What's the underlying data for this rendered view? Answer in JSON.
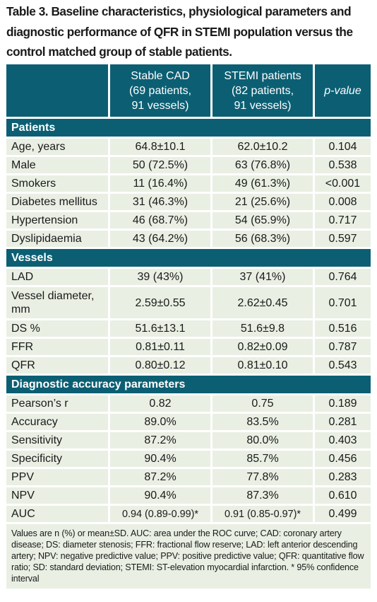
{
  "caption": "Table 3. Baseline characteristics, physiological parameters and diagnostic performance of QFR in STEMI population versus the control matched group of stable patients.",
  "columns": {
    "stable": [
      "Stable CAD",
      "(69 patients,",
      "91 vessels)"
    ],
    "stemi": [
      "STEMI patients",
      "(82 patients,",
      "91 vessels)"
    ],
    "pvalue": "p-value"
  },
  "sections": [
    {
      "title": "Patients",
      "rows": [
        {
          "label": "Age, years",
          "stable": "64.8±10.1",
          "stemi": "62.0±10.2",
          "p": "0.104"
        },
        {
          "label": "Male",
          "stable": "50 (72.5%)",
          "stemi": "63 (76.8%)",
          "p": "0.538"
        },
        {
          "label": "Smokers",
          "stable": "11 (16.4%)",
          "stemi": "49 (61.3%)",
          "p": "<0.001"
        },
        {
          "label": "Diabetes mellitus",
          "stable": "31 (46.3%)",
          "stemi": "21 (25.6%)",
          "p": "0.008"
        },
        {
          "label": "Hypertension",
          "stable": "46 (68.7%)",
          "stemi": "54 (65.9%)",
          "p": "0.717"
        },
        {
          "label": "Dyslipidaemia",
          "stable": "43 (64.2%)",
          "stemi": "56 (68.3%)",
          "p": "0.597"
        }
      ]
    },
    {
      "title": "Vessels",
      "rows": [
        {
          "label": "LAD",
          "stable": "39 (43%)",
          "stemi": "37 (41%)",
          "p": "0.764"
        },
        {
          "label": "Vessel diameter, mm",
          "stable": "2.59±0.55",
          "stemi": "2.62±0.45",
          "p": "0.701"
        },
        {
          "label": "DS %",
          "stable": "51.6±13.1",
          "stemi": "51.6±9.8",
          "p": "0.516"
        },
        {
          "label": "FFR",
          "stable": "0.81±0.11",
          "stemi": "0.82±0.09",
          "p": "0.787"
        },
        {
          "label": "QFR",
          "stable": "0.80±0.12",
          "stemi": "0.81±0.10",
          "p": "0.543"
        }
      ]
    },
    {
      "title": "Diagnostic accuracy parameters",
      "rows": [
        {
          "label": "Pearson’s r",
          "stable": "0.82",
          "stemi": "0.75",
          "p": "0.189"
        },
        {
          "label": "Accuracy",
          "stable": "89.0%",
          "stemi": "83.5%",
          "p": "0.281"
        },
        {
          "label": "Sensitivity",
          "stable": "87.2%",
          "stemi": "80.0%",
          "p": "0.403"
        },
        {
          "label": "Specificity",
          "stable": "90.4%",
          "stemi": "85.7%",
          "p": "0.456"
        },
        {
          "label": "PPV",
          "stable": "87.2%",
          "stemi": "77.8%",
          "p": "0.283"
        },
        {
          "label": "NPV",
          "stable": "90.4%",
          "stemi": "87.3%",
          "p": "0.610"
        },
        {
          "label": "AUC",
          "stable": "0.94 (0.89-0.99)*",
          "stemi": "0.91 (0.85-0.97)*",
          "p": "0.499"
        }
      ]
    }
  ],
  "footnote": "Values are n (%) or mean±SD. AUC: area under the ROC curve; CAD: coronary artery disease; DS: diameter stenosis; FFR: fractional flow reserve; LAD: left anterior descending artery; NPV: negative predictive value; PPV: positive predictive value; QFR: quantitative flow ratio; SD: standard deviation; STEMI: ST-elevation myocardial infarction. * 95% confidence interval",
  "colors": {
    "header": "#0c5f73",
    "cell": "#e9efe3",
    "text": "#1a1a1a"
  }
}
